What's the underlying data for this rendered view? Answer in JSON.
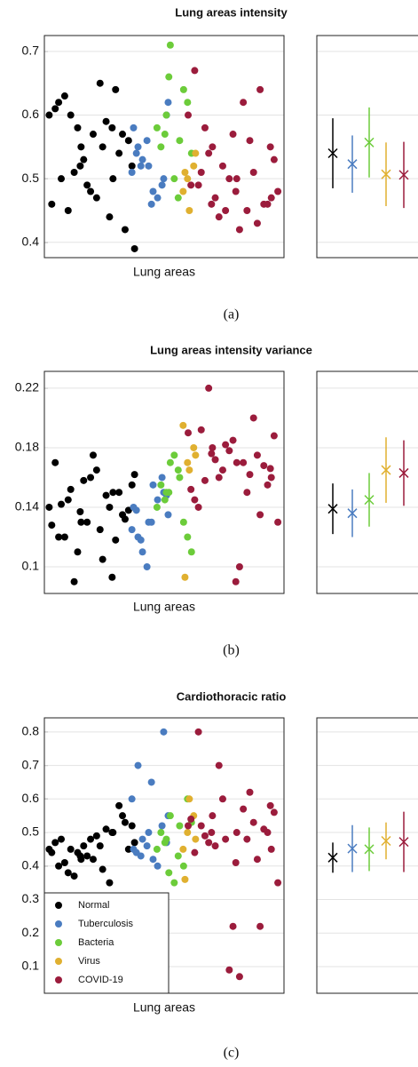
{
  "chart_data": [
    {
      "type": "scatter",
      "title": "Lung areas intensity",
      "xlabel": "Lung areas",
      "caption": "(a)",
      "ylim": [
        0.376,
        0.725
      ],
      "yticks": [
        0.4,
        0.5,
        0.6,
        0.7
      ],
      "grid": true,
      "legend": false,
      "series": [
        {
          "color": "#000000",
          "values": [
            0.6,
            0.55,
            0.5,
            0.62,
            0.48,
            0.57,
            0.45,
            0.65,
            0.52,
            0.58,
            0.44,
            0.61,
            0.49,
            0.54,
            0.63,
            0.47,
            0.56,
            0.51,
            0.59,
            0.46,
            0.53,
            0.64,
            0.5,
            0.57,
            0.42,
            0.6,
            0.55,
            0.39,
            0.52,
            0.58
          ],
          "mean": 0.54,
          "std": 0.055
        },
        {
          "color": "#4a7cc0",
          "values": [
            0.58,
            0.52,
            0.5,
            0.55,
            0.48,
            0.62,
            0.53,
            0.47,
            0.51,
            0.56,
            0.49,
            0.54,
            0.46,
            0.6,
            0.52
          ],
          "mean": 0.523,
          "std": 0.045
        },
        {
          "color": "#6ccc3a",
          "values": [
            0.6,
            0.56,
            0.58,
            0.71,
            0.64,
            0.55,
            0.5,
            0.62,
            0.57,
            0.47,
            0.54,
            0.66
          ],
          "mean": 0.557,
          "std": 0.055
        },
        {
          "color": "#e0b030",
          "values": [
            0.5,
            0.52,
            0.48,
            0.45,
            0.54,
            0.51
          ],
          "mean": 0.507,
          "std": 0.05
        },
        {
          "color": "#9b1c3c",
          "values": [
            0.5,
            0.47,
            0.55,
            0.45,
            0.6,
            0.52,
            0.43,
            0.49,
            0.57,
            0.46,
            0.54,
            0.62,
            0.48,
            0.44,
            0.51,
            0.67,
            0.5,
            0.46,
            0.58,
            0.42,
            0.53,
            0.47,
            0.56,
            0.49,
            0.45,
            0.64,
            0.51,
            0.48,
            0.55,
            0.46
          ],
          "mean": 0.506,
          "std": 0.052
        }
      ]
    },
    {
      "type": "scatter",
      "title": "Lung areas intensity variance",
      "xlabel": "Lung areas",
      "caption": "(b)",
      "ylim": [
        0.0821,
        0.2313
      ],
      "yticks": [
        0.1,
        0.14,
        0.18,
        0.22
      ],
      "grid": true,
      "legend": false,
      "series": [
        {
          "color": "#000000",
          "values": [
            0.14,
            0.13,
            0.15,
            0.12,
            0.16,
            0.135,
            0.145,
            0.125,
            0.155,
            0.11,
            0.14,
            0.17,
            0.13,
            0.15,
            0.12,
            0.165,
            0.138,
            0.09,
            0.148,
            0.128,
            0.158,
            0.118,
            0.142,
            0.175,
            0.132,
            0.152,
            0.105,
            0.162,
            0.137,
            0.093
          ],
          "mean": 0.139,
          "std": 0.017
        },
        {
          "color": "#4a7cc0",
          "values": [
            0.14,
            0.13,
            0.15,
            0.12,
            0.155,
            0.135,
            0.11,
            0.145,
            0.125,
            0.1,
            0.16,
            0.138,
            0.13,
            0.148,
            0.118
          ],
          "mean": 0.136,
          "std": 0.016
        },
        {
          "color": "#6ccc3a",
          "values": [
            0.15,
            0.16,
            0.14,
            0.17,
            0.13,
            0.155,
            0.175,
            0.12,
            0.145,
            0.165,
            0.11,
            0.15
          ],
          "mean": 0.145,
          "std": 0.018
        },
        {
          "color": "#e0b030",
          "values": [
            0.17,
            0.18,
            0.195,
            0.165,
            0.175,
            0.093
          ],
          "mean": 0.165,
          "std": 0.022
        },
        {
          "color": "#9b1c3c",
          "values": [
            0.17,
            0.16,
            0.18,
            0.15,
            0.19,
            0.165,
            0.175,
            0.14,
            0.185,
            0.155,
            0.22,
            0.17,
            0.13,
            0.16,
            0.2,
            0.145,
            0.178,
            0.168,
            0.158,
            0.1,
            0.188,
            0.172,
            0.162,
            0.152,
            0.182,
            0.135,
            0.192,
            0.09,
            0.166,
            0.176
          ],
          "mean": 0.163,
          "std": 0.022
        }
      ]
    },
    {
      "type": "scatter",
      "title": "Cardiothoracic ratio",
      "xlabel": "Lung areas",
      "caption": "(c)",
      "ylim": [
        0.0204,
        0.842
      ],
      "yticks": [
        0.1,
        0.2,
        0.3,
        0.4,
        0.5,
        0.6,
        0.7,
        0.8
      ],
      "grid": true,
      "legend": true,
      "legend_loc": "lower left",
      "series": [
        {
          "name": "Normal",
          "color": "#000000",
          "values": [
            0.45,
            0.42,
            0.5,
            0.4,
            0.48,
            0.55,
            0.38,
            0.46,
            0.52,
            0.44,
            0.35,
            0.47,
            0.43,
            0.58,
            0.41,
            0.49,
            0.45,
            0.37,
            0.51,
            0.44,
            0.46,
            0.3,
            0.48,
            0.42,
            0.53,
            0.45,
            0.39,
            0.47,
            0.43,
            0.5
          ],
          "mean": 0.425,
          "std": 0.045
        },
        {
          "name": "Tuberculosis",
          "color": "#4a7cc0",
          "values": [
            0.45,
            0.5,
            0.8,
            0.7,
            0.42,
            0.55,
            0.48,
            0.4,
            0.6,
            0.46,
            0.52,
            0.44,
            0.65,
            0.47,
            0.43
          ],
          "mean": 0.452,
          "std": 0.07
        },
        {
          "name": "Bacteria",
          "color": "#6ccc3a",
          "values": [
            0.48,
            0.52,
            0.45,
            0.55,
            0.4,
            0.5,
            0.35,
            0.6,
            0.47,
            0.43,
            0.53,
            0.38
          ],
          "mean": 0.45,
          "std": 0.065
        },
        {
          "name": "Virus",
          "color": "#e0b030",
          "values": [
            0.5,
            0.55,
            0.45,
            0.6,
            0.48,
            0.36
          ],
          "mean": 0.475,
          "std": 0.055
        },
        {
          "name": "COVID-19",
          "color": "#9b1c3c",
          "values": [
            0.5,
            0.45,
            0.55,
            0.48,
            0.52,
            0.6,
            0.42,
            0.8,
            0.22,
            0.5,
            0.47,
            0.57,
            0.35,
            0.7,
            0.53,
            0.44,
            0.09,
            0.51,
            0.49,
            0.07,
            0.56,
            0.46,
            0.62,
            0.54,
            0.48,
            0.22,
            0.52,
            0.41,
            0.58,
            0.5
          ],
          "mean": 0.472,
          "std": 0.09
        }
      ]
    }
  ]
}
